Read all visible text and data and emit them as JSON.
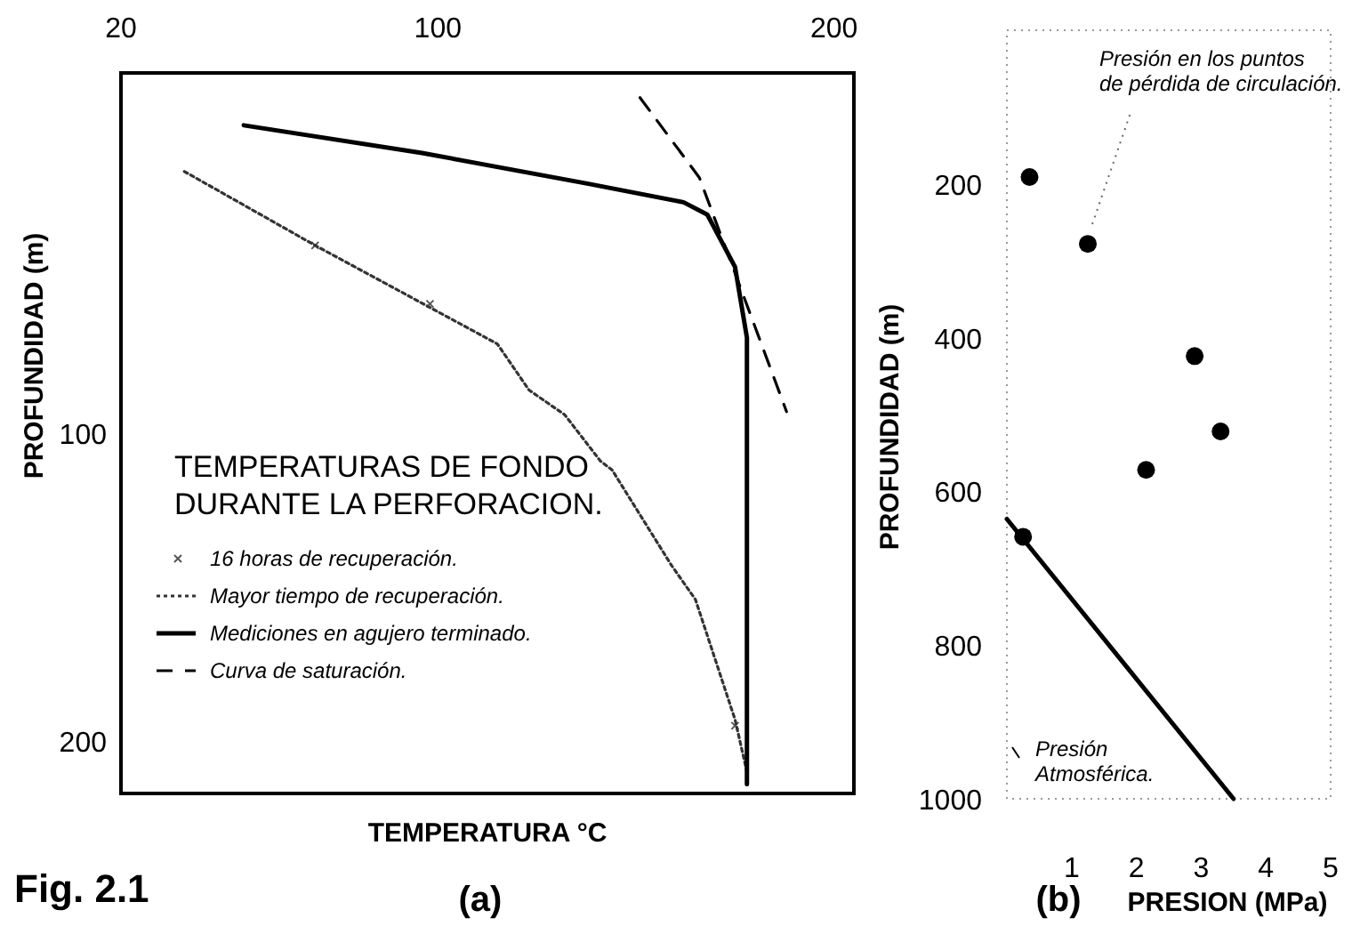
{
  "chart_data": [
    {
      "type": "line",
      "title": "(a)",
      "xlabel": "TEMPERATURA  °C",
      "ylabel": "PROFUNDIDAD (m)",
      "legend_title": "TEMPERATURAS DE FONDO\nDURANTE LA PERFORACION.",
      "legend": "bottom left",
      "xlim": [
        20,
        205
      ],
      "xticks": [
        20,
        100,
        200
      ],
      "ylim": [
        217,
        -17
      ],
      "yticks": [
        100,
        200
      ],
      "annotations": [
        "Fig. 2.1"
      ],
      "series": [
        {
          "name": "16 horas de recuperación.",
          "type": "scatter",
          "marker": "cross",
          "color": "#555555",
          "x": [
            69,
            98,
            175
          ],
          "values": [
            39,
            58,
            195
          ]
        },
        {
          "name": "Mayor tiempo de recuperación.",
          "line_style": "dotted",
          "color": "#333333",
          "x": [
            36,
            69,
            115,
            123,
            132,
            141,
            144,
            159,
            165,
            175,
            178
          ],
          "values": [
            15,
            39,
            71,
            86,
            94,
            109,
            112,
            143,
            154,
            193,
            210
          ]
        },
        {
          "name": "Mediciones en agujero terminado.",
          "line_style": "solid",
          "color": "#000000",
          "x": [
            51,
            96,
            138,
            162,
            168,
            175,
            178,
            178
          ],
          "values": [
            0,
            9,
            19,
            25,
            29,
            46,
            69,
            214
          ]
        },
        {
          "name": "Curva de saturación.",
          "line_style": "dashed",
          "color": "#000000",
          "x": [
            151,
            166,
            175,
            188
          ],
          "values": [
            -9,
            17,
            48,
            93
          ]
        }
      ]
    },
    {
      "type": "scatter",
      "title": "(b)",
      "xlabel": "PRESION (MPa)",
      "ylabel": "PROFUNDIDAD (m)",
      "xlim": [
        0,
        5
      ],
      "xticks": [
        1,
        2,
        3,
        4,
        5
      ],
      "ylim": [
        1000,
        0
      ],
      "yticks": [
        200,
        400,
        600,
        800,
        1000
      ],
      "annotations": [
        "Presión en los puntos\nde pérdida de circulación.",
        "Presión\nAtmosférica."
      ],
      "series": [
        {
          "marker": "circle",
          "color": "#000000",
          "x": [
            0.35,
            1.25,
            2.9,
            3.3,
            2.15,
            0.25
          ],
          "values": [
            191,
            278,
            424,
            522,
            572,
            659
          ]
        },
        {
          "type": "line",
          "line_style": "solid",
          "color": "#000000",
          "x": [
            0,
            3.5
          ],
          "values": [
            636,
            1000
          ]
        }
      ]
    }
  ]
}
